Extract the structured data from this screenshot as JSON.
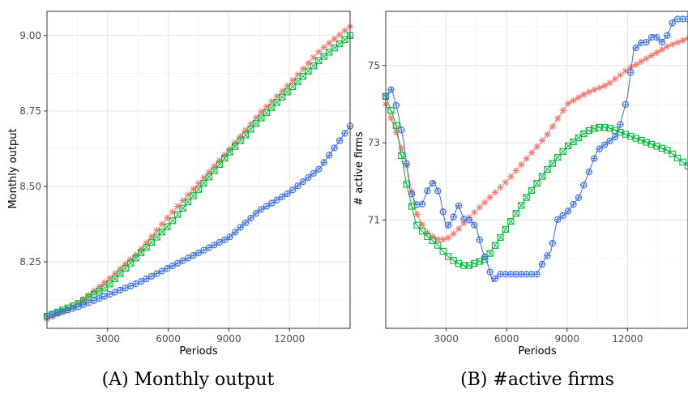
{
  "colors": {
    "sim_red": "#F8766D",
    "sim_green": "#00BA38",
    "sim_blue": "#3B6FE0"
  },
  "chart_data": [
    {
      "type": "line",
      "caption": "(A) Monthly output",
      "xlabel": "Periods",
      "ylabel": "Monthly output",
      "xlim": [
        0,
        15000
      ],
      "ylim": [
        8.03,
        9.08
      ],
      "xticks": [
        3000,
        6000,
        9000,
        12000
      ],
      "yticks": [
        8.25,
        8.5,
        8.75,
        9.0
      ],
      "ytick_labels": [
        "8.25",
        "8.50",
        "8.75",
        "9.00"
      ],
      "grid": true,
      "series": [
        {
          "marker": "asterisk",
          "color": "#F8766D",
          "points": [
            [
              0,
              8.06
            ],
            [
              1500,
              8.11
            ],
            [
              3000,
              8.19
            ],
            [
              4500,
              8.28
            ],
            [
              6000,
              8.4
            ],
            [
              7500,
              8.51
            ],
            [
              9000,
              8.62
            ],
            [
              10500,
              8.74
            ],
            [
              12000,
              8.84
            ],
            [
              13500,
              8.95
            ],
            [
              15000,
              9.03
            ]
          ]
        },
        {
          "marker": "square",
          "color": "#00BA38",
          "points": [
            [
              0,
              8.07
            ],
            [
              1500,
              8.11
            ],
            [
              3000,
              8.17
            ],
            [
              4500,
              8.27
            ],
            [
              6000,
              8.37
            ],
            [
              7500,
              8.49
            ],
            [
              9000,
              8.61
            ],
            [
              10500,
              8.72
            ],
            [
              12000,
              8.82
            ],
            [
              13500,
              8.92
            ],
            [
              15000,
              9.0
            ]
          ]
        },
        {
          "marker": "circle-plus",
          "color": "#3B6FE0",
          "points": [
            [
              0,
              8.07
            ],
            [
              1500,
              8.1
            ],
            [
              3000,
              8.14
            ],
            [
              4500,
              8.18
            ],
            [
              6000,
              8.23
            ],
            [
              7500,
              8.28
            ],
            [
              9000,
              8.33
            ],
            [
              10500,
              8.42
            ],
            [
              12000,
              8.48
            ],
            [
              13500,
              8.56
            ],
            [
              15000,
              8.7
            ]
          ]
        }
      ]
    },
    {
      "type": "line",
      "caption": "(B) #active firms",
      "xlabel": "Periods",
      "ylabel": "# active firms",
      "xlim": [
        0,
        15000
      ],
      "ylim": [
        68.2,
        76.4
      ],
      "xticks": [
        3000,
        6000,
        9000,
        12000
      ],
      "yticks": [
        71,
        73,
        75
      ],
      "ytick_labels": [
        "71",
        "73",
        "75"
      ],
      "grid": true,
      "series": [
        {
          "marker": "asterisk",
          "color": "#F8766D",
          "points": [
            [
              0,
              74.0
            ],
            [
              500,
              73.3
            ],
            [
              1000,
              72.5
            ],
            [
              1500,
              71.2
            ],
            [
              2000,
              70.7
            ],
            [
              2500,
              70.5
            ],
            [
              3000,
              70.5
            ],
            [
              3500,
              70.7
            ],
            [
              4000,
              71.0
            ],
            [
              5000,
              71.5
            ],
            [
              6000,
              72.0
            ],
            [
              7000,
              72.6
            ],
            [
              8000,
              73.2
            ],
            [
              9000,
              74.0
            ],
            [
              10000,
              74.3
            ],
            [
              11000,
              74.5
            ],
            [
              12000,
              74.9
            ],
            [
              13000,
              75.2
            ],
            [
              14000,
              75.5
            ],
            [
              15000,
              75.7
            ]
          ]
        },
        {
          "marker": "square",
          "color": "#00BA38",
          "points": [
            [
              0,
              74.2
            ],
            [
              500,
              73.5
            ],
            [
              1000,
              72.0
            ],
            [
              1500,
              70.9
            ],
            [
              2000,
              70.6
            ],
            [
              2500,
              70.4
            ],
            [
              3000,
              70.1
            ],
            [
              3500,
              69.9
            ],
            [
              4000,
              69.8
            ],
            [
              5000,
              70.0
            ],
            [
              6000,
              70.8
            ],
            [
              7000,
              71.6
            ],
            [
              8000,
              72.3
            ],
            [
              9000,
              72.9
            ],
            [
              10000,
              73.3
            ],
            [
              10500,
              73.4
            ],
            [
              11000,
              73.4
            ],
            [
              12000,
              73.2
            ],
            [
              13000,
              73.0
            ],
            [
              14000,
              72.8
            ],
            [
              15000,
              72.4
            ]
          ]
        },
        {
          "marker": "circle-plus",
          "color": "#3B6FE0",
          "points": [
            [
              0,
              74.2
            ],
            [
              300,
              74.4
            ],
            [
              600,
              73.8
            ],
            [
              900,
              73.0
            ],
            [
              1200,
              71.8
            ],
            [
              1500,
              71.4
            ],
            [
              1800,
              71.4
            ],
            [
              2100,
              71.8
            ],
            [
              2400,
              72.0
            ],
            [
              2700,
              71.6
            ],
            [
              3000,
              70.8
            ],
            [
              3300,
              71.0
            ],
            [
              3600,
              71.4
            ],
            [
              3900,
              71.0
            ],
            [
              4200,
              71.0
            ],
            [
              4500,
              70.8
            ],
            [
              4800,
              70.2
            ],
            [
              5100,
              69.8
            ],
            [
              5300,
              69.4
            ],
            [
              5600,
              69.6
            ],
            [
              6000,
              69.6
            ],
            [
              7000,
              69.6
            ],
            [
              7500,
              69.6
            ],
            [
              7900,
              70.0
            ],
            [
              8200,
              70.2
            ],
            [
              8500,
              71.0
            ],
            [
              9000,
              71.2
            ],
            [
              9300,
              71.4
            ],
            [
              9600,
              71.6
            ],
            [
              9900,
              72.0
            ],
            [
              10200,
              72.4
            ],
            [
              10500,
              72.8
            ],
            [
              11000,
              73.0
            ],
            [
              11500,
              73.2
            ],
            [
              11800,
              73.8
            ],
            [
              12000,
              74.2
            ],
            [
              12300,
              75.4
            ],
            [
              12700,
              75.6
            ],
            [
              13000,
              75.6
            ],
            [
              13300,
              75.8
            ],
            [
              13700,
              75.6
            ],
            [
              14000,
              75.8
            ],
            [
              14300,
              76.2
            ],
            [
              15000,
              76.2
            ]
          ]
        }
      ]
    }
  ]
}
